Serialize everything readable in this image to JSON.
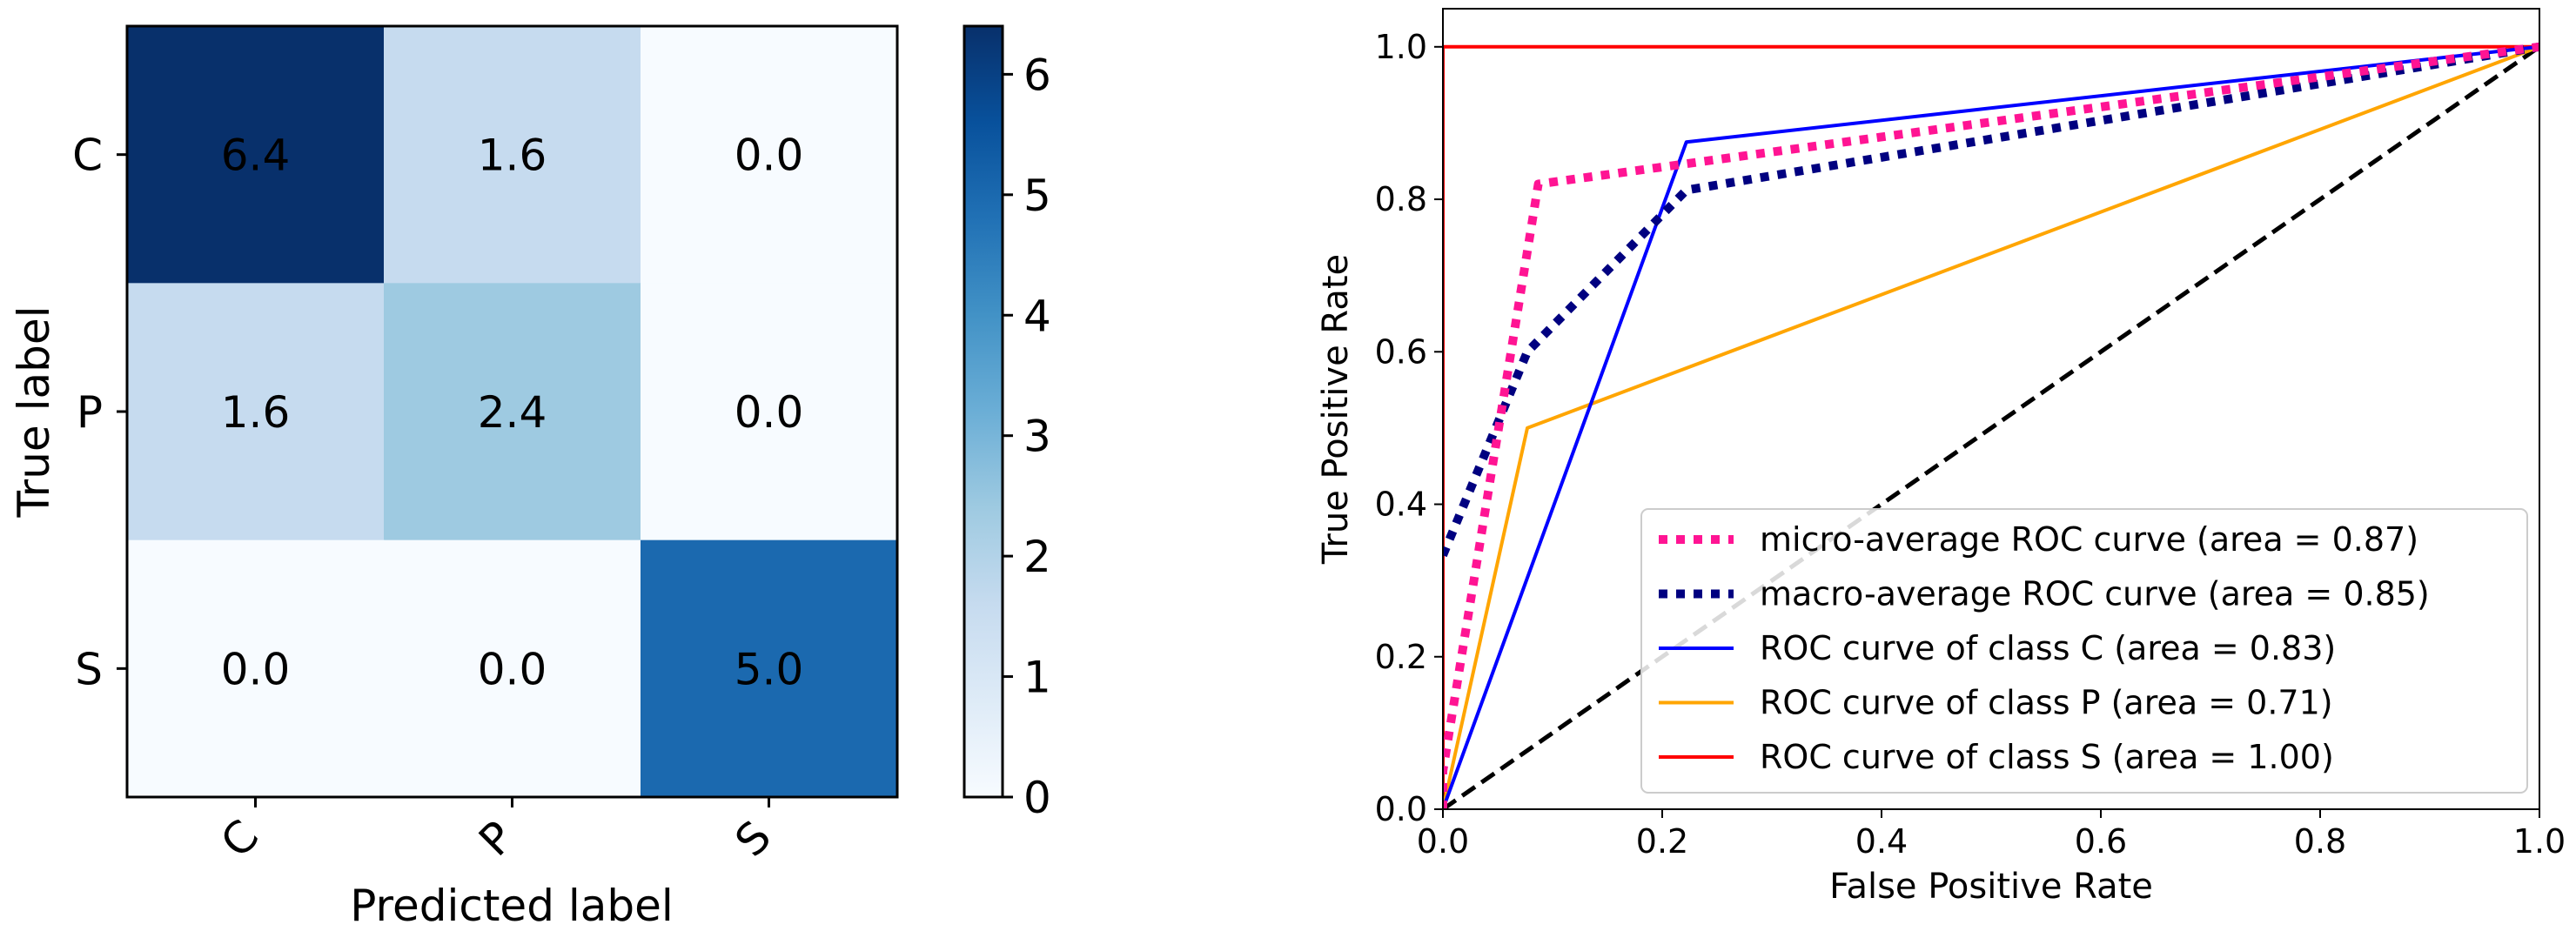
{
  "chart_data": [
    {
      "type": "heatmap",
      "title": "",
      "xlabel": "Predicted label",
      "ylabel": "True label",
      "x_categories": [
        "C",
        "P",
        "S"
      ],
      "y_categories": [
        "C",
        "P",
        "S"
      ],
      "values": [
        [
          6.4,
          1.6,
          0.0
        ],
        [
          1.6,
          2.4,
          0.0
        ],
        [
          0.0,
          0.0,
          5.0
        ]
      ],
      "cell_labels": [
        [
          "6.4",
          "1.6",
          "0.0"
        ],
        [
          "1.6",
          "2.4",
          "0.0"
        ],
        [
          "0.0",
          "0.0",
          "5.0"
        ]
      ],
      "colorbar": {
        "range": [
          0,
          6.4
        ],
        "ticks": [
          0,
          1,
          2,
          3,
          4,
          5,
          6
        ],
        "tick_labels": [
          "0",
          "1",
          "2",
          "3",
          "4",
          "5",
          "6"
        ],
        "colormap": "Blues"
      }
    },
    {
      "type": "line",
      "title": "",
      "xlabel": "False Positive Rate",
      "ylabel": "True Positive Rate",
      "xlim": [
        0.0,
        1.0
      ],
      "ylim": [
        0.0,
        1.05
      ],
      "x_ticks": [
        0.0,
        0.2,
        0.4,
        0.6,
        0.8,
        1.0
      ],
      "x_tick_labels": [
        "0.0",
        "0.2",
        "0.4",
        "0.6",
        "0.8",
        "1.0"
      ],
      "y_ticks": [
        0.0,
        0.2,
        0.4,
        0.6,
        0.8,
        1.0
      ],
      "y_tick_labels": [
        "0.0",
        "0.2",
        "0.4",
        "0.6",
        "0.8",
        "1.0"
      ],
      "legend_position": "lower-right",
      "series": [
        {
          "name": "micro-average ROC curve (area = 0.87)",
          "color": "#ff1493",
          "style": "dotted",
          "x": [
            0.0,
            0.0,
            0.087,
            1.0
          ],
          "y": [
            0.0,
            0.05,
            0.82,
            1.0
          ]
        },
        {
          "name": "macro-average ROC curve (area = 0.85)",
          "color": "#000080",
          "style": "dotted",
          "x": [
            0.0,
            0.077,
            0.222,
            1.0
          ],
          "y": [
            0.333,
            0.6,
            0.812,
            1.0
          ]
        },
        {
          "name": "ROC curve of class C (area = 0.83)",
          "color": "#0000ff",
          "style": "solid",
          "x": [
            0.0,
            0.222,
            1.0
          ],
          "y": [
            0.0,
            0.875,
            1.0
          ]
        },
        {
          "name": "ROC curve of class P (area = 0.71)",
          "color": "#ffa500",
          "style": "solid",
          "x": [
            0.0,
            0.077,
            1.0
          ],
          "y": [
            0.0,
            0.5,
            1.0
          ]
        },
        {
          "name": "ROC curve of class S (area = 1.00)",
          "color": "#ff0000",
          "style": "solid",
          "x": [
            0.0,
            0.0,
            1.0
          ],
          "y": [
            0.0,
            1.0,
            1.0
          ]
        }
      ],
      "reference_line": {
        "color": "#000000",
        "style": "dashed",
        "x": [
          0.0,
          1.0
        ],
        "y": [
          0.0,
          1.0
        ]
      }
    }
  ]
}
